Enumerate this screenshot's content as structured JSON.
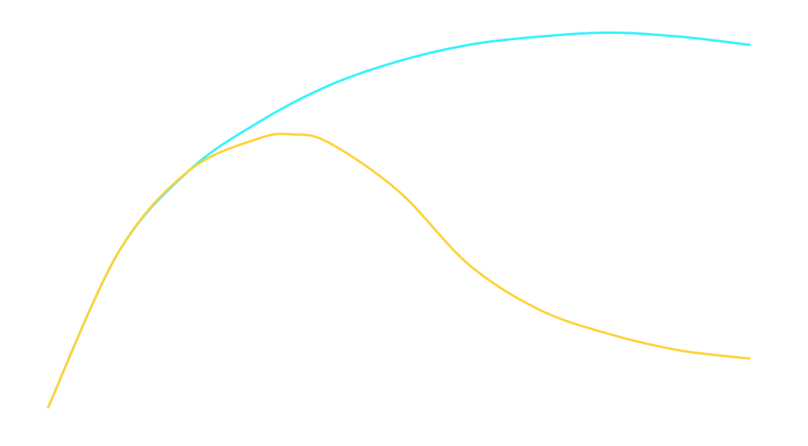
{
  "chart_data": {
    "type": "line",
    "title": "",
    "xlabel": "",
    "ylabel": "",
    "grid": false,
    "legend": "none",
    "xlim": [
      0,
      100
    ],
    "ylim": [
      0,
      100
    ],
    "series": [
      {
        "color": "#33f3ff",
        "x": [
          0,
          10,
          20,
          30,
          40,
          50,
          60,
          70,
          80,
          90,
          100
        ],
        "y": [
          0,
          38,
          58,
          70,
          79,
          85,
          89,
          91,
          92,
          91,
          89
        ]
      },
      {
        "color": "#ffd23a",
        "x": [
          0,
          10,
          20,
          30,
          35,
          40,
          50,
          60,
          70,
          80,
          90,
          100
        ],
        "y": [
          0,
          38,
          58,
          66,
          67,
          65,
          53,
          35,
          24,
          18,
          14,
          12
        ]
      }
    ]
  }
}
